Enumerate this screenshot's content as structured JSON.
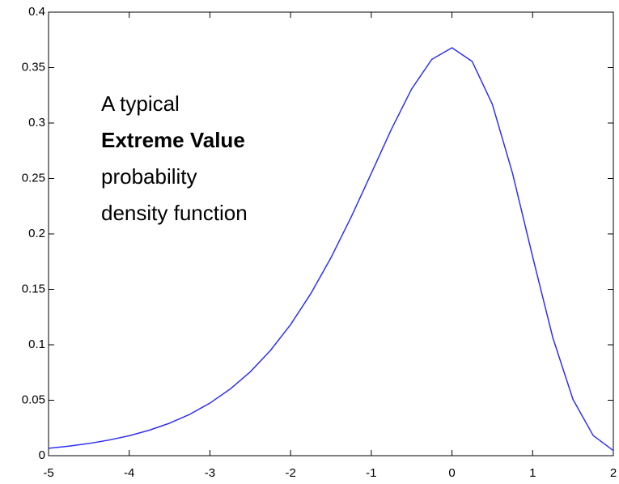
{
  "chart_data": {
    "type": "line",
    "annotation": [
      "A typical",
      "Extreme Value",
      "probability",
      "density function"
    ],
    "x": [
      -5,
      -4.75,
      -4.5,
      -4.25,
      -4,
      -3.75,
      -3.5,
      -3.25,
      -3,
      -2.75,
      -2.5,
      -2.25,
      -2,
      -1.75,
      -1.5,
      -1.25,
      -1,
      -0.75,
      -0.5,
      -0.25,
      0,
      0.25,
      0.5,
      0.75,
      1,
      1.25,
      1.5,
      1.75,
      2
    ],
    "series": [
      {
        "color": "#3030f0",
        "values": [
          0.0067,
          0.0086,
          0.011,
          0.0141,
          0.018,
          0.023,
          0.0293,
          0.0373,
          0.0474,
          0.06,
          0.0756,
          0.0949,
          0.1182,
          0.1461,
          0.1785,
          0.2151,
          0.2546,
          0.2945,
          0.3307,
          0.3574,
          0.3679,
          0.3556,
          0.317,
          0.2549,
          0.1794,
          0.1064,
          0.0507,
          0.0182,
          0.0046
        ]
      }
    ],
    "xlim": [
      -5,
      2
    ],
    "xticks": [
      -5,
      -4,
      -3,
      -2,
      -1,
      0,
      1,
      2
    ],
    "ylim": [
      0,
      0.4
    ],
    "yticks": [
      0,
      0.05,
      0.1,
      0.15,
      0.2,
      0.25,
      0.3,
      0.35,
      0.4
    ],
    "grid": false
  }
}
